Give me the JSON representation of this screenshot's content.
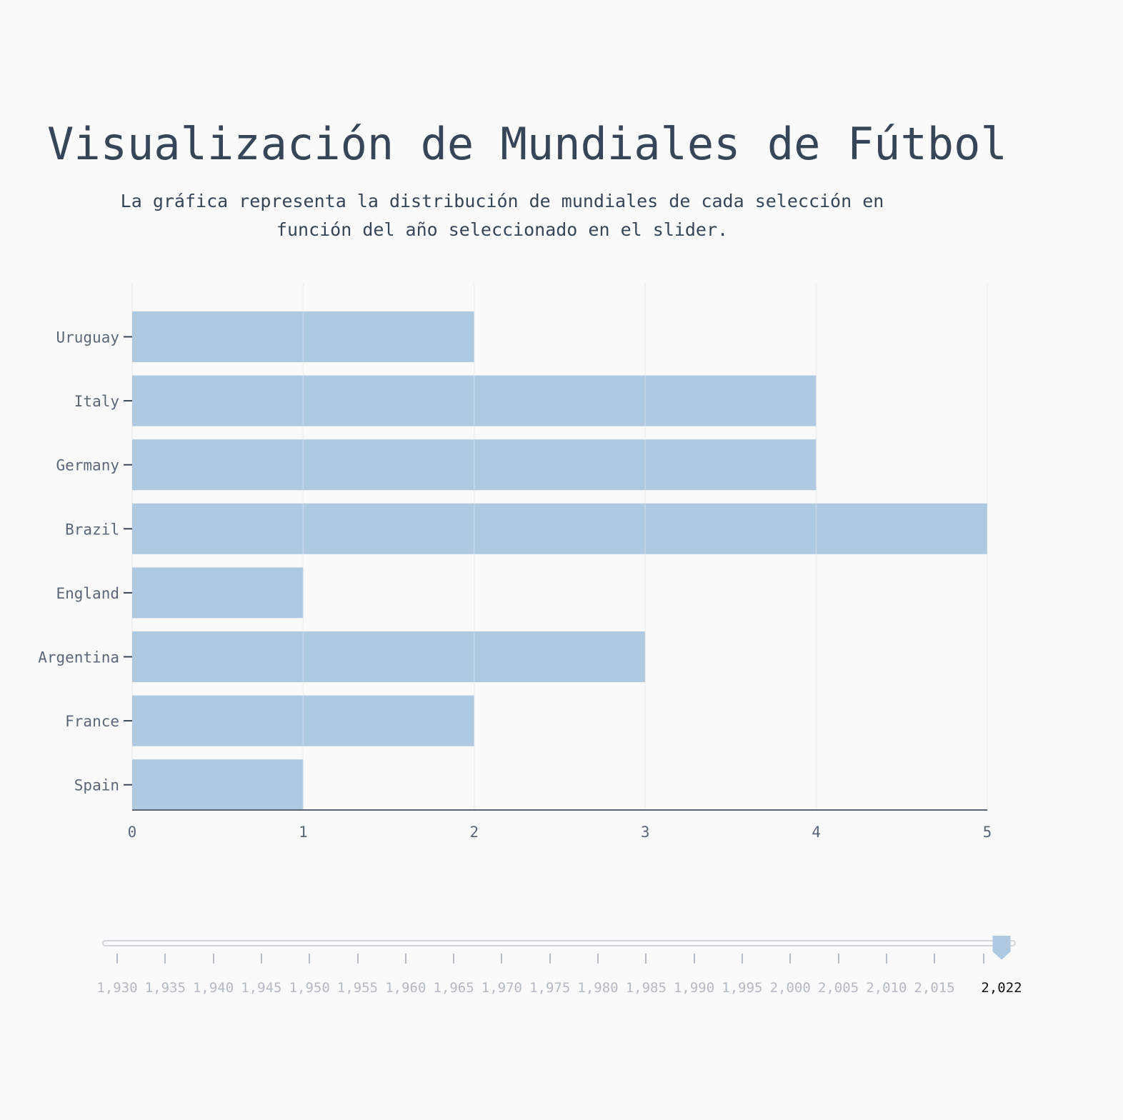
{
  "page": {
    "title": "Visualización de Mundiales de Fútbol",
    "subtitle": "La gráfica representa la distribución de mundiales de cada selección en función del año seleccionado en el slider."
  },
  "chart_data": {
    "type": "bar",
    "orientation": "horizontal",
    "categories": [
      "Uruguay",
      "Italy",
      "Germany",
      "Brazil",
      "England",
      "Argentina",
      "France",
      "Spain"
    ],
    "values": [
      2,
      4,
      4,
      5,
      1,
      3,
      2,
      1
    ],
    "xlim": [
      0,
      5
    ],
    "x_ticks": [
      "0",
      "1",
      "2",
      "3",
      "4",
      "5"
    ],
    "grid": true,
    "colors": {
      "bar": "#afc9e1",
      "axis": "#3a4656",
      "grid": "#ececec",
      "label": "#5b6778"
    }
  },
  "slider": {
    "min": 1930,
    "max": 2022,
    "value": 2022,
    "tick_labels": [
      "1,930",
      "1,935",
      "1,940",
      "1,945",
      "1,950",
      "1,955",
      "1,960",
      "1,965",
      "1,970",
      "1,975",
      "1,980",
      "1,985",
      "1,990",
      "1,995",
      "2,000",
      "2,005",
      "2,010",
      "2,015"
    ],
    "current_label": "2,022",
    "colors": {
      "handle": "#afc9e1",
      "track": "#d2d6db"
    }
  }
}
